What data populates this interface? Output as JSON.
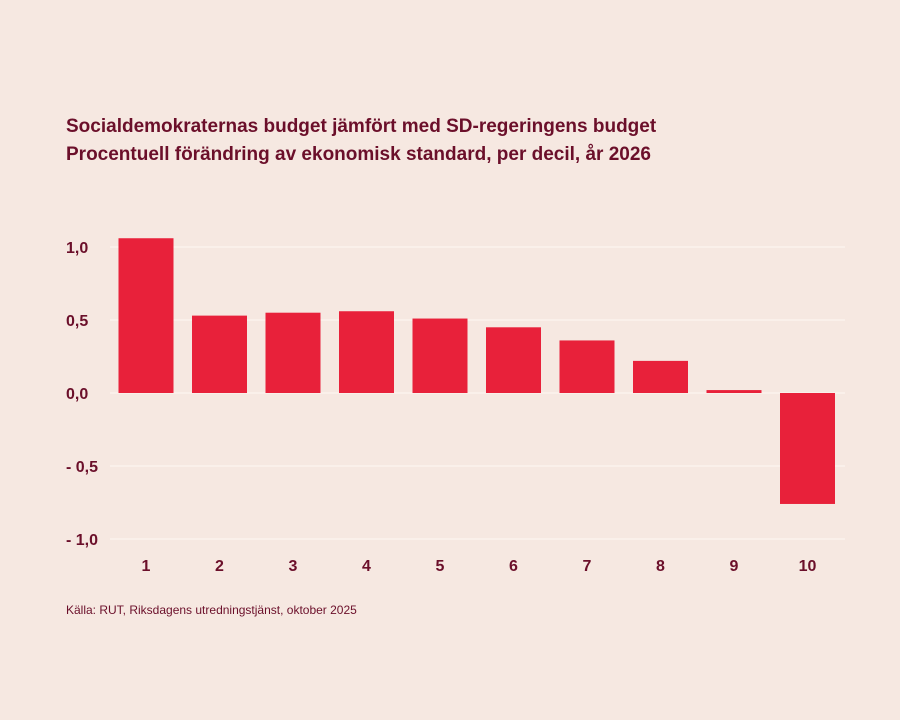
{
  "chart_data": {
    "type": "bar",
    "title": "Socialdemokraternas budget jämfört med SD-regeringens budget",
    "subtitle": "Procentuell förändring av ekonomisk standard, per decil, år 2026",
    "categories": [
      "1",
      "2",
      "3",
      "4",
      "5",
      "6",
      "7",
      "8",
      "9",
      "10"
    ],
    "values": [
      1.06,
      0.53,
      0.55,
      0.56,
      0.51,
      0.45,
      0.36,
      0.22,
      0.02,
      -0.76
    ],
    "ylim": [
      -1.0,
      1.0
    ],
    "yticks": [
      1.0,
      0.5,
      0.0,
      -0.5,
      -1.0
    ],
    "ytick_labels": [
      "1,0",
      "0,5",
      "0,0",
      "- 0,5",
      "- 1,0"
    ],
    "grid": true,
    "bar_color": "#e8213a",
    "grid_color": "#fbf3ee",
    "text_color": "#6b0f2a",
    "background": "#f6e8e1"
  },
  "source": "Källa: RUT, Riksdagens utredningstjänst, oktober 2025"
}
